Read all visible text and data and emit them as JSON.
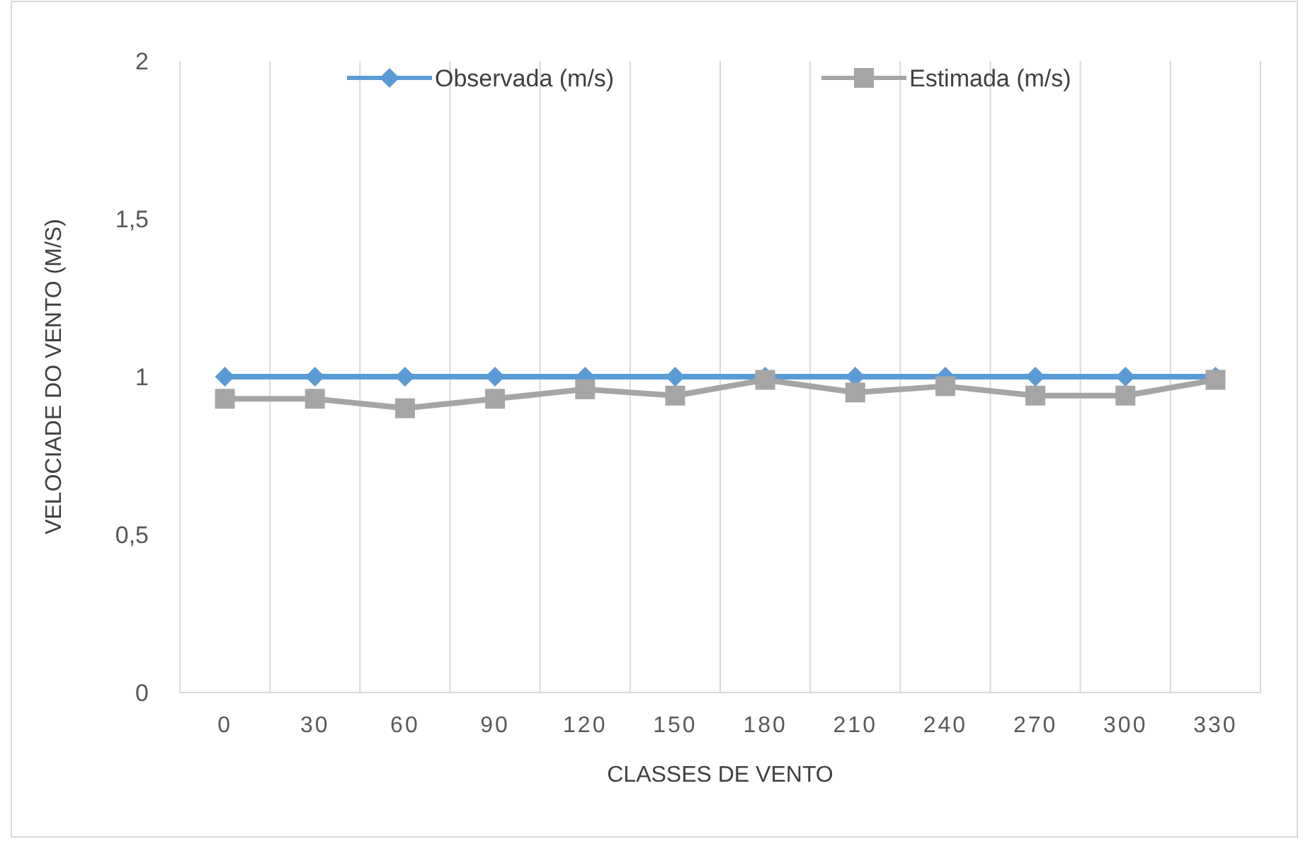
{
  "chart_data": {
    "type": "line",
    "xlabel": "CLASSES DE VENTO",
    "ylabel": "VELOCIADE DO VENTO (M/S)",
    "categories": [
      "0",
      "30",
      "60",
      "90",
      "120",
      "150",
      "180",
      "210",
      "240",
      "270",
      "300",
      "330"
    ],
    "series": [
      {
        "name": "Observada (m/s)",
        "color": "#5b9bd5",
        "marker": "diamond",
        "values": [
          1,
          1,
          1,
          1,
          1,
          1,
          1,
          1,
          1,
          1,
          1,
          1
        ]
      },
      {
        "name": "Estimada (m/s)",
        "color": "#a5a5a5",
        "marker": "square",
        "values": [
          0.93,
          0.93,
          0.9,
          0.93,
          0.96,
          0.94,
          0.99,
          0.95,
          0.97,
          0.94,
          0.94,
          0.99
        ]
      }
    ],
    "ylim": [
      0,
      2
    ],
    "yticks": [
      0,
      {
        "value": 0.5,
        "label": "0,5"
      },
      1,
      {
        "value": 1.5,
        "label": "1,5"
      },
      2
    ],
    "grid": "x",
    "legend": "top"
  }
}
